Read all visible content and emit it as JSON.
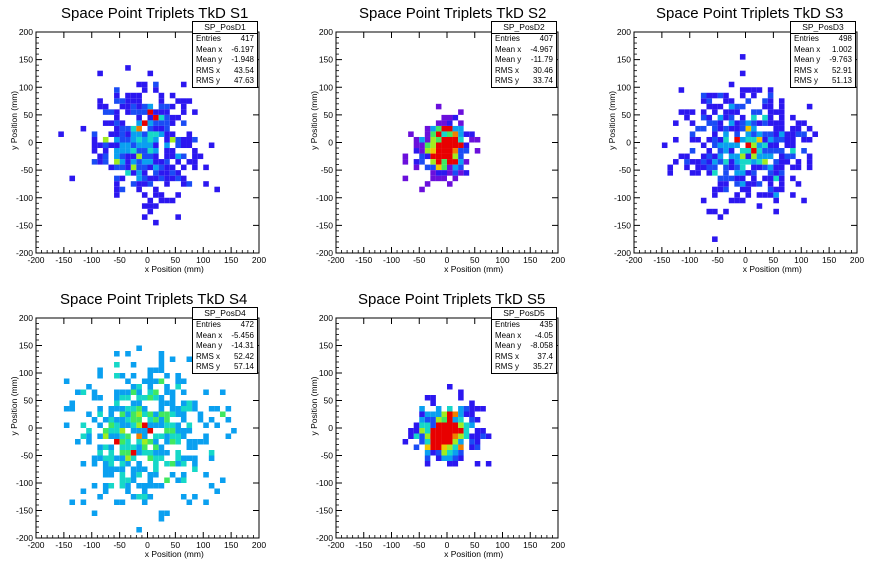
{
  "chart_data": [
    {
      "type": "heatmap",
      "title": "Space Point Triplets TkD S1",
      "xlabel": "x Position (mm)",
      "ylabel": "y Position (mm)",
      "xlim": [
        -200,
        200
      ],
      "ylim": [
        -200,
        200
      ],
      "xticks": [
        -200,
        -150,
        -100,
        -50,
        0,
        50,
        100,
        150,
        200
      ],
      "yticks": [
        -200,
        -150,
        -100,
        -50,
        0,
        50,
        100,
        150,
        200
      ],
      "bin_size_mm": 10,
      "stats": {
        "name": "SP_PosD1",
        "Entries": 417,
        "Mean x": -6.197,
        "Mean y": -1.948,
        "RMS x": 43.54,
        "RMS y": 47.63
      }
    },
    {
      "type": "heatmap",
      "title": "Space Point Triplets TkD S2",
      "xlabel": "x Position (mm)",
      "ylabel": "y Position (mm)",
      "xlim": [
        -200,
        200
      ],
      "ylim": [
        -200,
        200
      ],
      "xticks": [
        -200,
        -150,
        -100,
        -50,
        0,
        50,
        100,
        150,
        200
      ],
      "yticks": [
        -200,
        -150,
        -100,
        -50,
        0,
        50,
        100,
        150,
        200
      ],
      "bin_size_mm": 10,
      "stats": {
        "name": "SP_PosD2",
        "Entries": 407,
        "Mean x": -4.967,
        "Mean y": -11.79,
        "RMS x": 30.46,
        "RMS y": 33.74
      }
    },
    {
      "type": "heatmap",
      "title": "Space Point Triplets TkD S3",
      "xlabel": "x Position (mm)",
      "ylabel": "y Position (mm)",
      "xlim": [
        -200,
        200
      ],
      "ylim": [
        -200,
        200
      ],
      "xticks": [
        -200,
        -150,
        -100,
        -50,
        0,
        50,
        100,
        150,
        200
      ],
      "yticks": [
        -200,
        -150,
        -100,
        -50,
        0,
        50,
        100,
        150,
        200
      ],
      "bin_size_mm": 10,
      "stats": {
        "name": "SP_PosD3",
        "Entries": 498,
        "Mean x": 1.002,
        "Mean y": -9.763,
        "RMS x": 52.91,
        "RMS y": 51.13
      }
    },
    {
      "type": "heatmap",
      "title": "Space Point Triplets TkD S4",
      "xlabel": "x Position (mm)",
      "ylabel": "y Position (mm)",
      "xlim": [
        -200,
        200
      ],
      "ylim": [
        -200,
        200
      ],
      "xticks": [
        -200,
        -150,
        -100,
        -50,
        0,
        50,
        100,
        150,
        200
      ],
      "yticks": [
        -200,
        -150,
        -100,
        -50,
        0,
        50,
        100,
        150,
        200
      ],
      "bin_size_mm": 10,
      "stats": {
        "name": "SP_PosD4",
        "Entries": 472,
        "Mean x": -5.456,
        "Mean y": -14.31,
        "RMS x": 52.42,
        "RMS y": 57.14
      }
    },
    {
      "type": "heatmap",
      "title": "Space Point Triplets TkD S5",
      "xlabel": "x Position (mm)",
      "ylabel": "y Position (mm)",
      "xlim": [
        -200,
        200
      ],
      "ylim": [
        -200,
        200
      ],
      "xticks": [
        -200,
        -150,
        -100,
        -50,
        0,
        50,
        100,
        150,
        200
      ],
      "yticks": [
        -200,
        -150,
        -100,
        -50,
        0,
        50,
        100,
        150,
        200
      ],
      "bin_size_mm": 10,
      "stats": {
        "name": "SP_PosD5",
        "Entries": 435,
        "Mean x": -4.05,
        "Mean y": -8.058,
        "RMS x": 37.4,
        "RMS y": 35.27
      }
    }
  ]
}
